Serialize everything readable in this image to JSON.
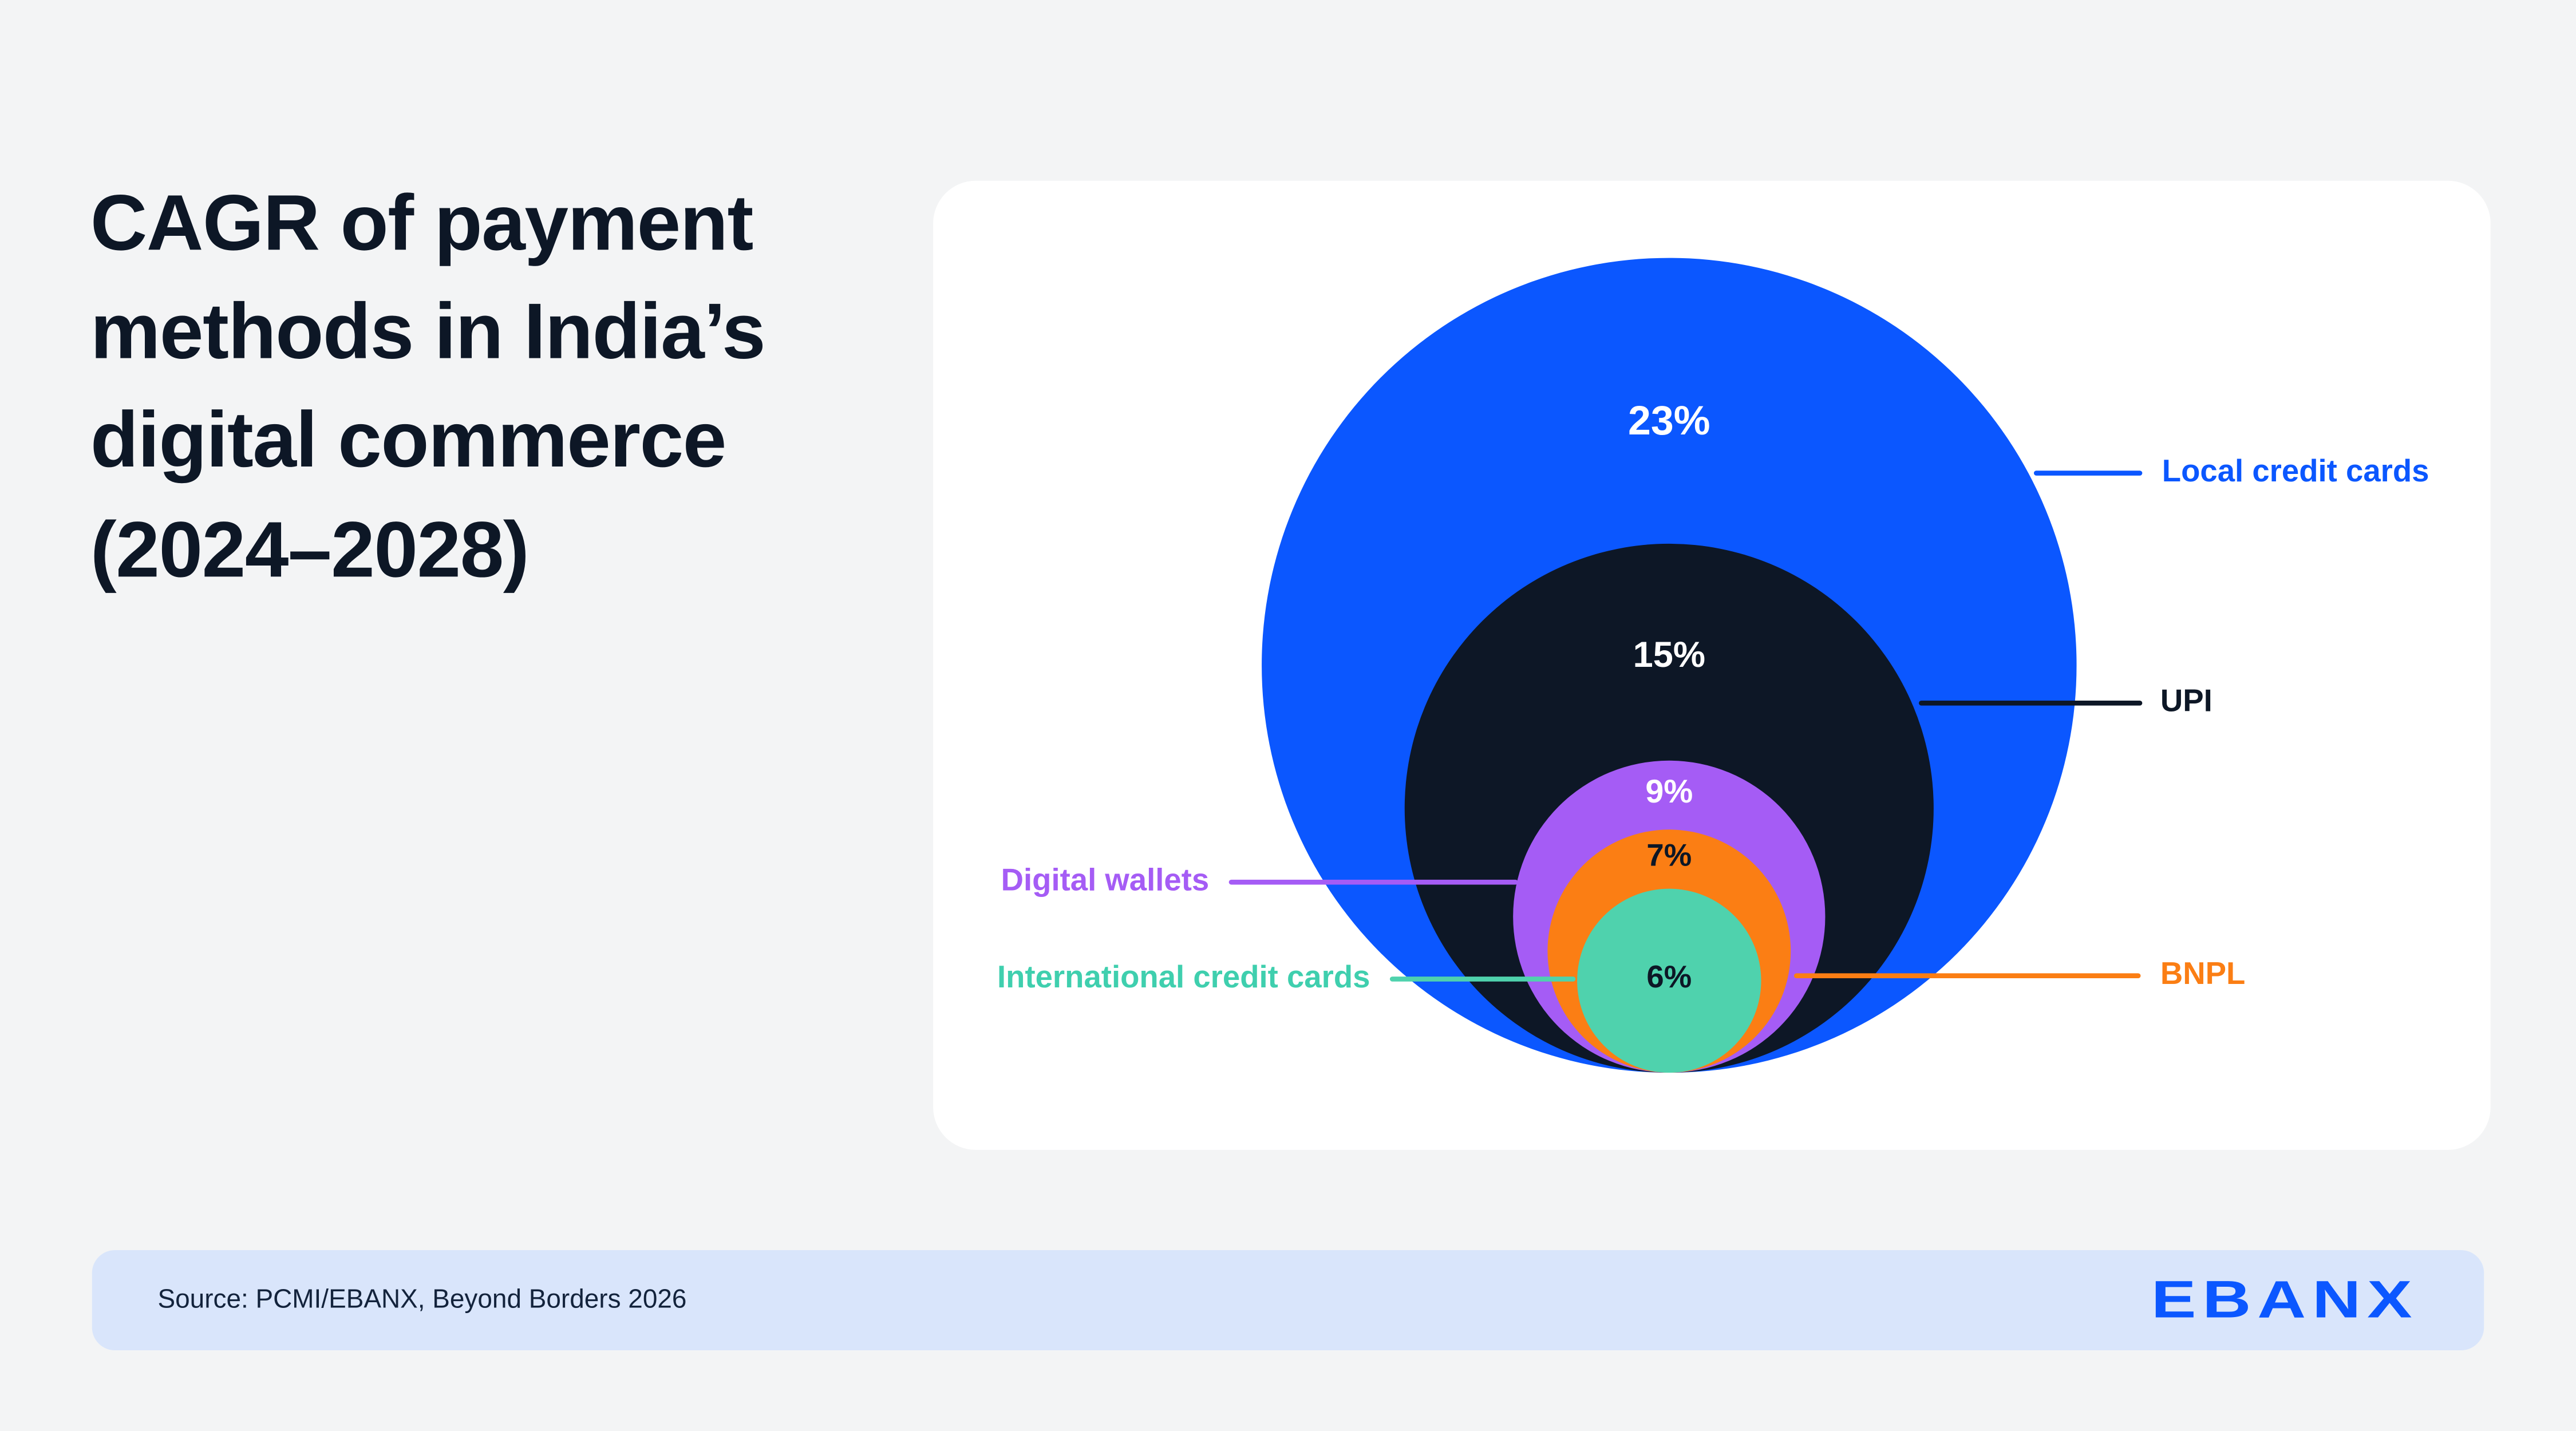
{
  "page": {
    "title": "CAGR of payment methods in India’s digital commerce (2024–2028)",
    "footer": {
      "source": "Source: PCMI/EBANX, Beyond Borders 2026",
      "logo_text": "EBANX"
    }
  },
  "chart_data": {
    "type": "nested-bubble",
    "title": "CAGR of payment methods in India’s digital commerce (2024–2028)",
    "value_unit": "% CAGR 2024–2028",
    "layout": "concentric circles, bottom-aligned, radius proportional to value, callout labels with leader lines",
    "series": [
      {
        "label": "Local credit cards",
        "value": 23,
        "value_label": "23%",
        "color": "#0b57ff",
        "label_side": "right"
      },
      {
        "label": "UPI",
        "value": 15,
        "value_label": "15%",
        "color": "#0d1726",
        "label_side": "right"
      },
      {
        "label": "Digital wallets",
        "value": 9,
        "value_label": "9%",
        "color": "#a55cf5",
        "label_side": "left"
      },
      {
        "label": "BNPL",
        "value": 7,
        "value_label": "7%",
        "color": "#fb7e14",
        "label_side": "right"
      },
      {
        "label": "International credit cards",
        "value": 6,
        "value_label": "6%",
        "color": "#4fd2ad",
        "label_side": "left"
      }
    ]
  }
}
